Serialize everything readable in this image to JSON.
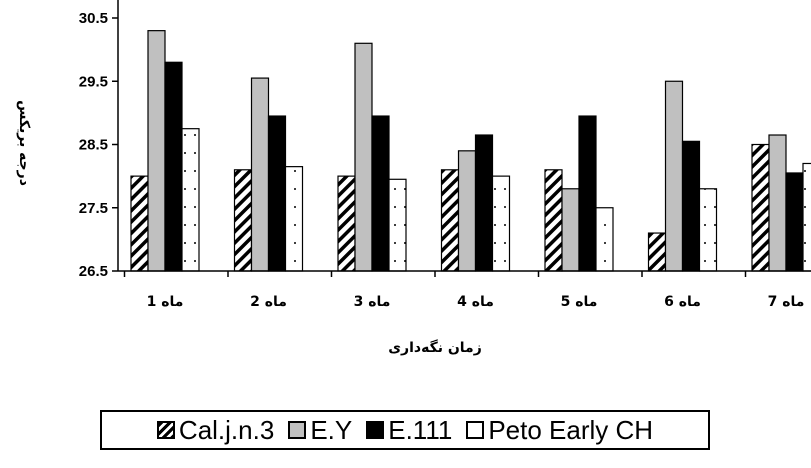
{
  "chart_data": {
    "type": "bar",
    "ylabel": "درجه بریکس",
    "xlabel": "زمان نگه‌داری",
    "ylim": [
      26.5,
      30.5
    ],
    "yticks": [
      "26.5",
      "27.5",
      "28.5",
      "29.5",
      "30.5"
    ],
    "categories": [
      "ماه 1",
      "ماه 2",
      "ماه 3",
      "ماه 4",
      "ماه 5",
      "ماه 6",
      "ماه 7"
    ],
    "series": [
      {
        "name": "Cal.j.n.3",
        "values": [
          28.0,
          28.1,
          28.0,
          28.1,
          28.1,
          27.1,
          28.5
        ],
        "pattern": "diagonal-hatch",
        "color": "#ffffff"
      },
      {
        "name": "E.Y",
        "values": [
          30.3,
          29.55,
          30.1,
          28.4,
          27.8,
          29.5,
          28.65
        ],
        "pattern": "solid",
        "color": "#c0c0c0"
      },
      {
        "name": "E.111",
        "values": [
          29.8,
          28.95,
          28.95,
          28.65,
          28.95,
          28.55,
          28.05
        ],
        "pattern": "solid",
        "color": "#000000"
      },
      {
        "name": "Peto Early CH",
        "values": [
          28.75,
          28.15,
          27.95,
          28.0,
          27.5,
          27.8,
          28.2
        ],
        "pattern": "dots",
        "color": "#ffffff"
      }
    ],
    "legend_position": "bottom",
    "grid": false
  }
}
